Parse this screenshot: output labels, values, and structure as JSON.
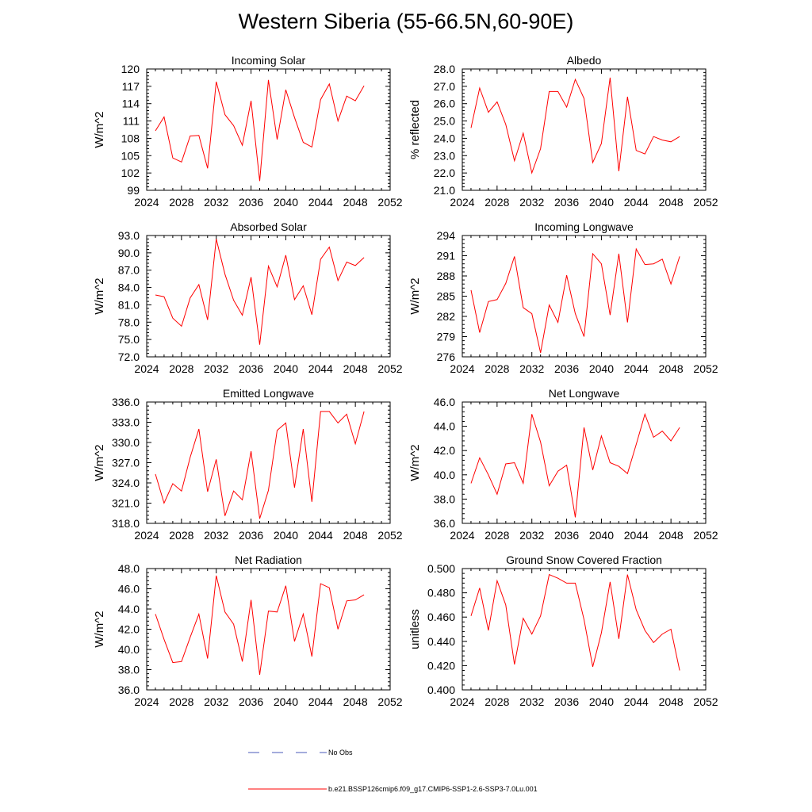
{
  "title": "Western Siberia (55-66.5N,60-90E)",
  "legend": {
    "obs_label": "No Obs",
    "sim_label": "b.e21.BSSP126cmip6.f09_g17.CMIP6-SSP1-2.6-SSP3-7.0Lu.001",
    "obs_color": "#4a5ab8",
    "sim_color": "#ff0000"
  },
  "chart_data": [
    {
      "type": "line",
      "title": "Incoming Solar",
      "xlabel": "",
      "ylabel": "W/m^2",
      "xlim": [
        2024,
        2052
      ],
      "ylim": [
        99,
        120
      ],
      "xticks": [
        "2024",
        "2028",
        "2032",
        "2036",
        "2040",
        "2044",
        "2048",
        "2052"
      ],
      "yticks": [
        "99",
        "102",
        "105",
        "108",
        "111",
        "114",
        "117",
        "120"
      ],
      "series": [
        {
          "color": "#ff0000",
          "x": [
            2025,
            2026,
            2027,
            2028,
            2029,
            2030,
            2031,
            2032,
            2033,
            2034,
            2035,
            2036,
            2037,
            2038,
            2039,
            2040,
            2041,
            2042,
            2043,
            2044,
            2045,
            2046,
            2047,
            2048,
            2049
          ],
          "y": [
            109.3,
            111.7,
            104.6,
            103.9,
            108.4,
            108.5,
            102.8,
            117.8,
            112.1,
            110.2,
            106.8,
            114.5,
            100.6,
            118.1,
            107.8,
            116.4,
            111.6,
            107.3,
            106.5,
            114.7,
            117.4,
            111.0,
            115.3,
            114.5,
            117.1
          ]
        }
      ]
    },
    {
      "type": "line",
      "title": "Albedo",
      "xlabel": "",
      "ylabel": "% reflected",
      "xlim": [
        2024,
        2052
      ],
      "ylim": [
        21.0,
        28.0
      ],
      "xticks": [
        "2024",
        "2028",
        "2032",
        "2036",
        "2040",
        "2044",
        "2048",
        "2052"
      ],
      "yticks": [
        "21.0",
        "22.0",
        "23.0",
        "24.0",
        "25.0",
        "26.0",
        "27.0",
        "28.0"
      ],
      "series": [
        {
          "color": "#ff0000",
          "x": [
            2025,
            2026,
            2027,
            2028,
            2029,
            2030,
            2031,
            2032,
            2033,
            2034,
            2035,
            2036,
            2037,
            2038,
            2039,
            2040,
            2041,
            2042,
            2043,
            2044,
            2045,
            2046,
            2047,
            2048,
            2049
          ],
          "y": [
            24.6,
            26.9,
            25.5,
            26.1,
            24.8,
            22.7,
            24.3,
            22.0,
            23.4,
            26.7,
            26.7,
            25.8,
            27.4,
            26.3,
            22.6,
            23.7,
            27.5,
            22.1,
            26.4,
            23.3,
            23.1,
            24.1,
            23.9,
            23.8,
            24.1
          ]
        }
      ]
    },
    {
      "type": "line",
      "title": "Absorbed Solar",
      "xlabel": "",
      "ylabel": "W/m^2",
      "xlim": [
        2024,
        2052
      ],
      "ylim": [
        72.0,
        93.0
      ],
      "xticks": [
        "2024",
        "2028",
        "2032",
        "2036",
        "2040",
        "2044",
        "2048",
        "2052"
      ],
      "yticks": [
        "72.0",
        "75.0",
        "78.0",
        "81.0",
        "84.0",
        "87.0",
        "90.0",
        "93.0"
      ],
      "series": [
        {
          "color": "#ff0000",
          "x": [
            2025,
            2026,
            2027,
            2028,
            2029,
            2030,
            2031,
            2032,
            2033,
            2034,
            2035,
            2036,
            2037,
            2038,
            2039,
            2040,
            2041,
            2042,
            2043,
            2044,
            2045,
            2046,
            2047,
            2048,
            2049
          ],
          "y": [
            82.7,
            82.4,
            78.7,
            77.3,
            82.2,
            84.5,
            78.4,
            92.4,
            86.3,
            81.8,
            79.2,
            85.8,
            74.1,
            87.7,
            84.1,
            89.6,
            81.9,
            84.3,
            79.3,
            88.9,
            91.0,
            85.2,
            88.4,
            87.8,
            89.2
          ]
        }
      ]
    },
    {
      "type": "line",
      "title": "Incoming Longwave",
      "xlabel": "",
      "ylabel": "W/m^2",
      "xlim": [
        2024,
        2052
      ],
      "ylim": [
        276,
        294
      ],
      "xticks": [
        "2024",
        "2028",
        "2032",
        "2036",
        "2040",
        "2044",
        "2048",
        "2052"
      ],
      "yticks": [
        "276",
        "279",
        "282",
        "285",
        "288",
        "291",
        "294"
      ],
      "series": [
        {
          "color": "#ff0000",
          "x": [
            2025,
            2026,
            2027,
            2028,
            2029,
            2030,
            2031,
            2032,
            2033,
            2034,
            2035,
            2036,
            2037,
            2038,
            2039,
            2040,
            2041,
            2042,
            2043,
            2044,
            2045,
            2046,
            2047,
            2048,
            2049
          ],
          "y": [
            285.9,
            279.6,
            284.2,
            284.5,
            286.9,
            290.9,
            283.3,
            282.4,
            276.6,
            283.7,
            281.1,
            288.1,
            282.4,
            279.0,
            291.3,
            289.8,
            282.2,
            291.3,
            281.1,
            292.0,
            289.7,
            289.8,
            290.5,
            286.8,
            290.9
          ]
        }
      ]
    },
    {
      "type": "line",
      "title": "Emitted Longwave",
      "xlabel": "",
      "ylabel": "W/m^2",
      "xlim": [
        2024,
        2052
      ],
      "ylim": [
        318.0,
        336.0
      ],
      "xticks": [
        "2024",
        "2028",
        "2032",
        "2036",
        "2040",
        "2044",
        "2048",
        "2052"
      ],
      "yticks": [
        "318.0",
        "321.0",
        "324.0",
        "327.0",
        "330.0",
        "333.0",
        "336.0"
      ],
      "series": [
        {
          "color": "#ff0000",
          "x": [
            2025,
            2026,
            2027,
            2028,
            2029,
            2030,
            2031,
            2032,
            2033,
            2034,
            2035,
            2036,
            2037,
            2038,
            2039,
            2040,
            2041,
            2042,
            2043,
            2044,
            2045,
            2046,
            2047,
            2048,
            2049
          ],
          "y": [
            325.3,
            321.0,
            323.9,
            322.8,
            327.8,
            332.0,
            322.7,
            327.5,
            319.1,
            322.8,
            321.5,
            328.7,
            318.7,
            322.9,
            331.8,
            332.9,
            323.3,
            332.0,
            321.2,
            334.6,
            334.6,
            332.9,
            334.2,
            329.8,
            334.6
          ]
        }
      ]
    },
    {
      "type": "line",
      "title": "Net Longwave",
      "xlabel": "",
      "ylabel": "W/m^2",
      "xlim": [
        2024,
        2052
      ],
      "ylim": [
        36.0,
        46.0
      ],
      "xticks": [
        "2024",
        "2028",
        "2032",
        "2036",
        "2040",
        "2044",
        "2048",
        "2052"
      ],
      "yticks": [
        "36.0",
        "38.0",
        "40.0",
        "42.0",
        "44.0",
        "46.0"
      ],
      "series": [
        {
          "color": "#ff0000",
          "x": [
            2025,
            2026,
            2027,
            2028,
            2029,
            2030,
            2031,
            2032,
            2033,
            2034,
            2035,
            2036,
            2037,
            2038,
            2039,
            2040,
            2041,
            2042,
            2043,
            2044,
            2045,
            2046,
            2047,
            2048,
            2049
          ],
          "y": [
            39.3,
            41.4,
            40.0,
            38.4,
            40.9,
            41.0,
            39.3,
            45.0,
            42.7,
            39.1,
            40.3,
            40.8,
            36.5,
            43.9,
            40.4,
            43.2,
            41.0,
            40.7,
            40.1,
            42.5,
            45.0,
            43.1,
            43.6,
            42.8,
            43.9
          ]
        }
      ]
    },
    {
      "type": "line",
      "title": "Net Radiation",
      "xlabel": "",
      "ylabel": "W/m^2",
      "xlim": [
        2024,
        2052
      ],
      "ylim": [
        36.0,
        48.0
      ],
      "xticks": [
        "2024",
        "2028",
        "2032",
        "2036",
        "2040",
        "2044",
        "2048",
        "2052"
      ],
      "yticks": [
        "36.0",
        "38.0",
        "40.0",
        "42.0",
        "44.0",
        "46.0",
        "48.0"
      ],
      "series": [
        {
          "color": "#ff0000",
          "x": [
            2025,
            2026,
            2027,
            2028,
            2029,
            2030,
            2031,
            2032,
            2033,
            2034,
            2035,
            2036,
            2037,
            2038,
            2039,
            2040,
            2041,
            2042,
            2043,
            2044,
            2045,
            2046,
            2047,
            2048,
            2049
          ],
          "y": [
            43.5,
            41.0,
            38.7,
            38.8,
            41.2,
            43.5,
            39.1,
            47.3,
            43.7,
            42.5,
            38.8,
            44.9,
            37.5,
            43.8,
            43.7,
            46.3,
            40.8,
            43.5,
            39.3,
            46.5,
            46.1,
            42.0,
            44.8,
            44.9,
            45.4
          ]
        }
      ]
    },
    {
      "type": "line",
      "title": "Ground Snow Covered Fraction",
      "xlabel": "",
      "ylabel": "unitless",
      "xlim": [
        2024,
        2052
      ],
      "ylim": [
        0.4,
        0.5
      ],
      "xticks": [
        "2024",
        "2028",
        "2032",
        "2036",
        "2040",
        "2044",
        "2048",
        "2052"
      ],
      "yticks": [
        "0.400",
        "0.420",
        "0.440",
        "0.460",
        "0.480",
        "0.500"
      ],
      "series": [
        {
          "color": "#ff0000",
          "x": [
            2025,
            2026,
            2027,
            2028,
            2029,
            2030,
            2031,
            2032,
            2033,
            2034,
            2035,
            2036,
            2037,
            2038,
            2039,
            2040,
            2041,
            2042,
            2043,
            2044,
            2045,
            2046,
            2047,
            2048,
            2049
          ],
          "y": [
            0.461,
            0.484,
            0.449,
            0.49,
            0.47,
            0.421,
            0.459,
            0.446,
            0.461,
            0.495,
            0.492,
            0.488,
            0.488,
            0.458,
            0.419,
            0.447,
            0.489,
            0.442,
            0.495,
            0.466,
            0.449,
            0.439,
            0.446,
            0.45,
            0.416
          ]
        }
      ]
    }
  ]
}
